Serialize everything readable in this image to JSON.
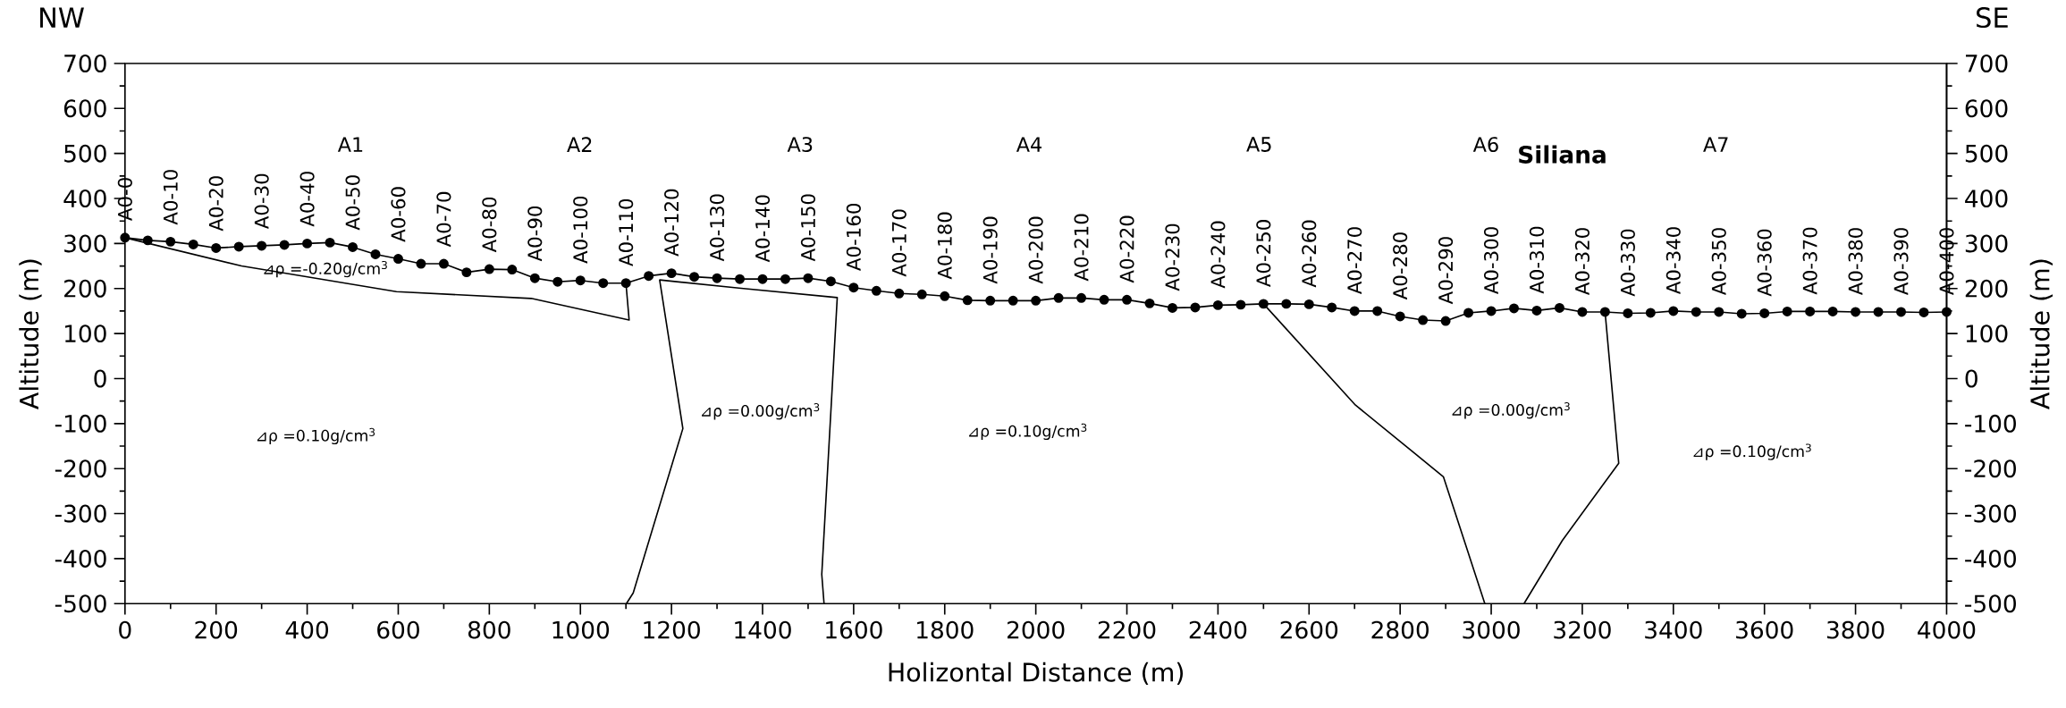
{
  "chart_data": {
    "type": "line",
    "xlabel": "Holizontal Distance (m)",
    "ylabel": "Altitude (m)",
    "y2label": "Altitude (m)",
    "xlim": [
      0,
      4000
    ],
    "xticks": [
      0,
      200,
      400,
      600,
      800,
      1000,
      1200,
      1400,
      1600,
      1800,
      2000,
      2200,
      2400,
      2600,
      2800,
      3000,
      3200,
      3400,
      3600,
      3800,
      4000
    ],
    "ylim": [
      -500,
      700
    ],
    "yticks": [
      -500,
      -400,
      -300,
      -200,
      -100,
      0,
      100,
      200,
      300,
      400,
      500,
      600,
      700
    ],
    "y2lim": [
      -500,
      700
    ],
    "y2ticks": [
      -500,
      -400,
      -300,
      -200,
      -100,
      0,
      100,
      200,
      300,
      400,
      500,
      600,
      700
    ],
    "series": [
      {
        "color": "#000000",
        "marker": "circle",
        "x": [
          0,
          50,
          100,
          150,
          200,
          250,
          300,
          350,
          400,
          450,
          500,
          550,
          600,
          650,
          700,
          750,
          800,
          850,
          900,
          950,
          1000,
          1050,
          1100,
          1150,
          1200,
          1250,
          1300,
          1350,
          1400,
          1450,
          1500,
          1550,
          1600,
          1650,
          1700,
          1750,
          1800,
          1850,
          1900,
          1950,
          2000,
          2050,
          2100,
          2150,
          2200,
          2250,
          2300,
          2350,
          2400,
          2450,
          2500,
          2550,
          2600,
          2650,
          2700,
          2750,
          2800,
          2850,
          2900,
          2950,
          3000,
          3050,
          3100,
          3150,
          3200,
          3250,
          3300,
          3350,
          3400,
          3450,
          3500,
          3550,
          3600,
          3650,
          3700,
          3750,
          3800,
          3850,
          3900,
          3950,
          4000
        ],
        "values": [
          313,
          307,
          304,
          298,
          290,
          293,
          295,
          297,
          300,
          302,
          292,
          276,
          266,
          255,
          255,
          236,
          243,
          242,
          223,
          215,
          218,
          212,
          212,
          228,
          234,
          226,
          223,
          221,
          221,
          221,
          223,
          216,
          202,
          195,
          189,
          187,
          183,
          174,
          173,
          173,
          173,
          179,
          179,
          175,
          175,
          167,
          157,
          158,
          163,
          164,
          166,
          166,
          165,
          158,
          150,
          150,
          138,
          130,
          128,
          146,
          150,
          156,
          151,
          157,
          148,
          148,
          145,
          146,
          150,
          148,
          148,
          144,
          145,
          149,
          149,
          149,
          148,
          148,
          148,
          147,
          148
        ]
      },
      {
        "color": "#000000",
        "marker": "none",
        "x": [
          0,
          256,
          596,
          892,
          1107,
          1100
        ],
        "values": [
          313,
          250,
          193,
          178,
          130,
          212
        ]
      },
      {
        "color": "#000000",
        "marker": "none",
        "x": [
          1101,
          1116,
          1225,
          1174,
          1348,
          1564,
          1530,
          1535
        ],
        "values": [
          -500,
          -476,
          -111,
          219,
          201,
          180,
          -435,
          -500
        ]
      },
      {
        "color": "#000000",
        "marker": "none",
        "x": [
          2500,
          2702,
          2895,
          2986
        ],
        "values": [
          166,
          -59,
          -218,
          -500
        ]
      },
      {
        "color": "#000000",
        "marker": "none",
        "x": [
          3072,
          3156,
          3280,
          3250
        ],
        "values": [
          -500,
          -360,
          -188,
          148
        ]
      }
    ],
    "annotations": [
      "NW",
      "SE",
      "A1",
      "A2",
      "A3",
      "A4",
      "A5",
      "A6",
      "A7",
      "Siliana",
      "⊿ρ =-0.20g/cm$^{3}$",
      "⊿ρ =0.10g/cm$^{3}$",
      "⊿ρ =0.00g/cm$^{3}$",
      "⊿ρ =0.10g/cm$^{3}$",
      "⊿ρ =0.00g/cm$^{3}$",
      "⊿ρ =0.10g/cm$^{3}$",
      {
        "text": "A0-0",
        "x": 0,
        "y": 313
      },
      {
        "text": "A0-10",
        "x": 100,
        "y": 304
      },
      {
        "text": "A0-20",
        "x": 200,
        "y": 290
      },
      {
        "text": "A0-30",
        "x": 300,
        "y": 295
      },
      {
        "text": "A0-40",
        "x": 400,
        "y": 300
      },
      {
        "text": "A0-50",
        "x": 500,
        "y": 292
      },
      {
        "text": "A0-60",
        "x": 600,
        "y": 266
      },
      {
        "text": "A0-70",
        "x": 700,
        "y": 255
      },
      {
        "text": "A0-80",
        "x": 800,
        "y": 243
      },
      {
        "text": "A0-90",
        "x": 900,
        "y": 223
      },
      {
        "text": "A0-100",
        "x": 1000,
        "y": 218
      },
      {
        "text": "A0-110",
        "x": 1100,
        "y": 212
      },
      {
        "text": "A0-120",
        "x": 1200,
        "y": 234
      },
      {
        "text": "A0-130",
        "x": 1300,
        "y": 223
      },
      {
        "text": "A0-140",
        "x": 1400,
        "y": 221
      },
      {
        "text": "A0-150",
        "x": 1500,
        "y": 223
      },
      {
        "text": "A0-160",
        "x": 1600,
        "y": 202
      },
      {
        "text": "A0-170",
        "x": 1700,
        "y": 189
      },
      {
        "text": "A0-180",
        "x": 1800,
        "y": 183
      },
      {
        "text": "A0-190",
        "x": 1900,
        "y": 173
      },
      {
        "text": "A0-200",
        "x": 2000,
        "y": 173
      },
      {
        "text": "A0-210",
        "x": 2100,
        "y": 179
      },
      {
        "text": "A0-220",
        "x": 2200,
        "y": 175
      },
      {
        "text": "A0-230",
        "x": 2300,
        "y": 157
      },
      {
        "text": "A0-240",
        "x": 2400,
        "y": 163
      },
      {
        "text": "A0-250",
        "x": 2500,
        "y": 166
      },
      {
        "text": "A0-260",
        "x": 2600,
        "y": 165
      },
      {
        "text": "A0-270",
        "x": 2700,
        "y": 150
      },
      {
        "text": "A0-280",
        "x": 2800,
        "y": 138
      },
      {
        "text": "A0-290",
        "x": 2900,
        "y": 128
      },
      {
        "text": "A0-300",
        "x": 3000,
        "y": 150
      },
      {
        "text": "A0-310",
        "x": 3100,
        "y": 151
      },
      {
        "text": "A0-320",
        "x": 3200,
        "y": 148
      },
      {
        "text": "A0-330",
        "x": 3300,
        "y": 145
      },
      {
        "text": "A0-340",
        "x": 3400,
        "y": 150
      },
      {
        "text": "A0-350",
        "x": 3500,
        "y": 148
      },
      {
        "text": "A0-360",
        "x": 3600,
        "y": 145
      },
      {
        "text": "A0-370",
        "x": 3700,
        "y": 149
      },
      {
        "text": "A0-380",
        "x": 3800,
        "y": 148
      },
      {
        "text": "A0-390",
        "x": 3900,
        "y": 148
      },
      {
        "text": "A0-400",
        "x": 4000,
        "y": 148
      }
    ]
  }
}
